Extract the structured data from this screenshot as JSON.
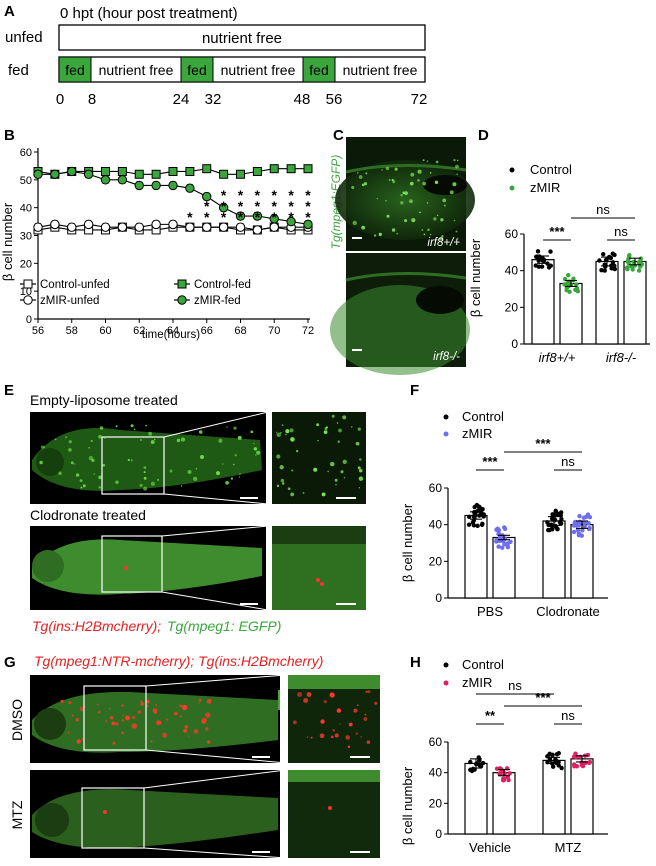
{
  "panelA": {
    "label": "A",
    "title": "0 hpt (hour post treatment)",
    "row_unfed": "unfed",
    "row_fed": "fed",
    "unfed_bar": "nutrient free",
    "fed_label": "fed",
    "nf_label": "nutrient free",
    "ticks": [
      "0",
      "8",
      "24",
      "32",
      "48",
      "56",
      "72"
    ],
    "colors": {
      "fed": "#3aa63c"
    }
  },
  "panelB": {
    "label": "B",
    "ylabel": "β cell number",
    "xlabel": "time(hours)",
    "legend": [
      "Control-unfed",
      "Control-fed",
      "zMIR-unfed",
      "zMIR-fed"
    ],
    "xticks": [
      "56",
      "58",
      "60",
      "62",
      "64",
      "66",
      "68",
      "70",
      "72"
    ],
    "yticks": [
      "0",
      "10",
      "20",
      "30",
      "40",
      "50",
      "60"
    ],
    "sig": [
      "*",
      "**",
      "***",
      "***",
      "***",
      "***",
      "***",
      "***"
    ]
  },
  "panelC": {
    "label": "C",
    "side": "Tg(mpeg1:EGFP)",
    "top": "irf8+/+",
    "bottom": "irf8-/-"
  },
  "panelD": {
    "label": "D",
    "ylabel": "β cell number",
    "legend": [
      "Control",
      "zMIR"
    ],
    "groups": [
      "irf8+/+",
      "irf8-/-"
    ],
    "yticks": [
      "0",
      "20",
      "40",
      "60"
    ],
    "sig_within": [
      "***",
      "ns"
    ],
    "sig_between": "ns"
  },
  "panelE": {
    "label": "E",
    "top": "Empty-liposome treated",
    "bottom": "Clodronate treated",
    "caption_red": "Tg(ins:H2Bmcherry);",
    "caption_green": "Tg(mpeg1: EGFP)"
  },
  "panelF": {
    "label": "F",
    "ylabel": "β cell number",
    "legend": [
      "Control",
      "zMIR"
    ],
    "groups": [
      "PBS",
      "Clodronate"
    ],
    "yticks": [
      "0",
      "20",
      "40",
      "60"
    ],
    "sig_within": [
      "***",
      "ns"
    ],
    "sig_between": "***"
  },
  "panelG": {
    "label": "G",
    "title": "Tg(mpeg1:NTR-mcherry); Tg(ins:H2Bmcherry)",
    "row1": "DMSO",
    "row2": "MTZ"
  },
  "panelH": {
    "label": "H",
    "ylabel": "β cell number",
    "legend": [
      "Control",
      "zMIR"
    ],
    "groups": [
      "Vehicle",
      "MTZ"
    ],
    "yticks": [
      "0",
      "20",
      "40",
      "60"
    ],
    "sig_within": [
      "**",
      "ns"
    ],
    "sig_between": "***",
    "sig_top": "ns"
  },
  "chart_data": [
    {
      "type": "line",
      "panel": "B",
      "x": [
        56,
        57,
        58,
        59,
        60,
        61,
        62,
        63,
        64,
        65,
        66,
        67,
        68,
        69,
        70,
        71,
        72
      ],
      "series": [
        {
          "name": "Control-unfed",
          "values": [
            32,
            33,
            32,
            32,
            32,
            33,
            32,
            32,
            33,
            33,
            33,
            33,
            32,
            32,
            33,
            32,
            32
          ]
        },
        {
          "name": "Control-fed",
          "values": [
            53,
            52,
            53,
            53,
            53,
            53,
            52,
            52,
            53,
            53,
            54,
            52,
            52,
            53,
            54,
            54,
            54
          ]
        },
        {
          "name": "zMIR-unfed",
          "values": [
            33,
            34,
            33,
            34,
            33,
            33,
            33,
            34,
            34,
            33,
            33,
            33,
            33,
            32,
            33,
            33,
            33
          ]
        },
        {
          "name": "zMIR-fed",
          "values": [
            52,
            52,
            53,
            52,
            50,
            50,
            48,
            48,
            48,
            47,
            44,
            40,
            37,
            37,
            36,
            35,
            34
          ]
        }
      ],
      "xlabel": "time(hours)",
      "ylabel": "β cell number",
      "xlim": [
        56,
        72
      ],
      "ylim": [
        0,
        60
      ],
      "legend_position": "bottom"
    },
    {
      "type": "bar",
      "panel": "D",
      "categories": [
        "irf8+/+",
        "irf8-/-"
      ],
      "series": [
        {
          "name": "Control",
          "values": [
            46,
            45
          ],
          "sem": [
            1,
            1.2
          ]
        },
        {
          "name": "zMIR",
          "values": [
            33,
            45
          ],
          "sem": [
            0.8,
            0.9
          ]
        }
      ],
      "ylabel": "β cell number",
      "ylim": [
        0,
        60
      ]
    },
    {
      "type": "bar",
      "panel": "F",
      "categories": [
        "PBS",
        "Clodronate"
      ],
      "series": [
        {
          "name": "Control",
          "values": [
            45,
            42
          ],
          "sem": [
            1,
            1.2
          ]
        },
        {
          "name": "zMIR",
          "values": [
            33,
            40
          ],
          "sem": [
            0.6,
            1
          ]
        }
      ],
      "ylabel": "β cell number",
      "ylim": [
        0,
        60
      ]
    },
    {
      "type": "bar",
      "panel": "H",
      "categories": [
        "Vehicle",
        "MTZ"
      ],
      "series": [
        {
          "name": "Control",
          "values": [
            46,
            48
          ],
          "sem": [
            1.5,
            1
          ]
        },
        {
          "name": "zMIR",
          "values": [
            40,
            49
          ],
          "sem": [
            1,
            1
          ]
        }
      ],
      "ylabel": "β cell number",
      "ylim": [
        0,
        60
      ]
    }
  ]
}
